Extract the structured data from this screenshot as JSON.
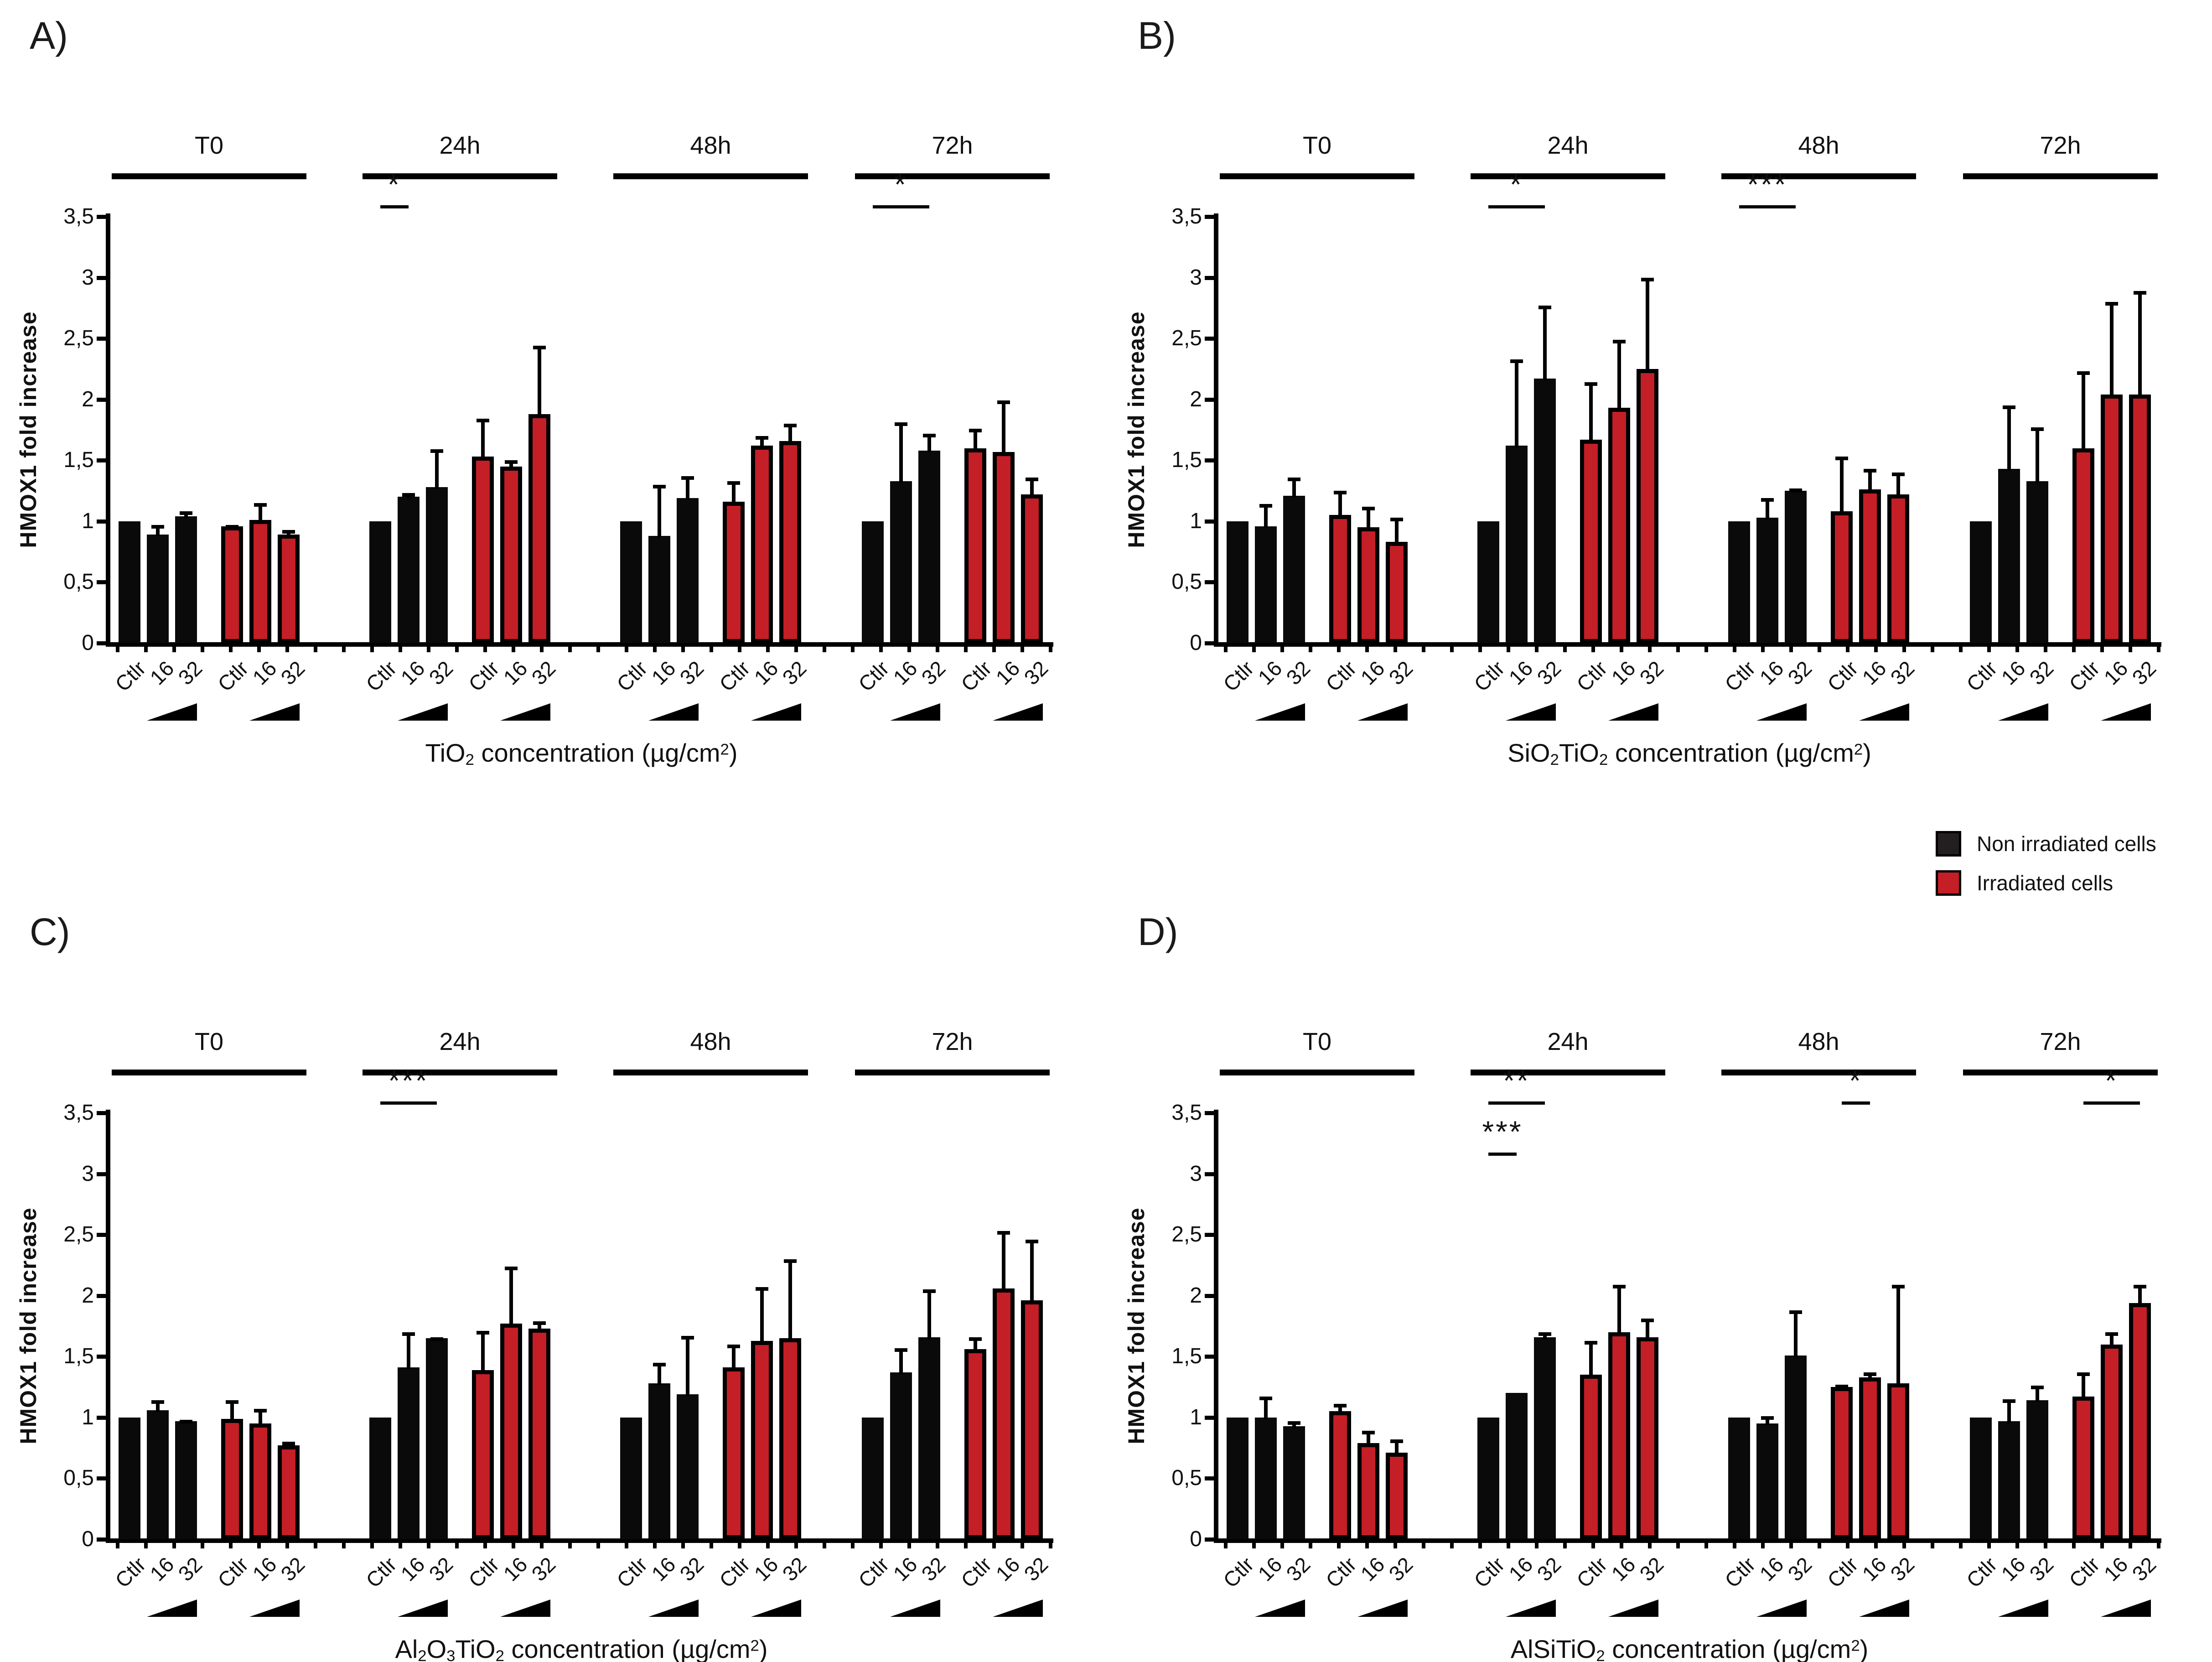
{
  "figure": {
    "background": "#ffffff",
    "series_colors": {
      "non_irradiated": "#0a0a0a",
      "irradiated": "#c41e26"
    },
    "bar_outline_color": "#000000",
    "ylabel": "HMOX1 fold increase",
    "ymax": 3.5,
    "yticks": [
      "0",
      "0,5",
      "1",
      "1,5",
      "2",
      "2,5",
      "3",
      "3,5"
    ],
    "concentration_labels": [
      "Ctlr",
      "16",
      "32"
    ],
    "legend": {
      "items": [
        {
          "key": "non_irradiated",
          "label": "Non irradiated cells",
          "color": "#231f20"
        },
        {
          "key": "irradiated",
          "label": "Irradiated cells",
          "color": "#c41e26"
        }
      ]
    }
  },
  "chart_data": [
    {
      "panel": "A",
      "letter": "A)",
      "type": "bar",
      "ylabel": "HMOX1 fold increase",
      "ylim": [
        0,
        3.5
      ],
      "categories": [
        "Ctlr",
        "16",
        "32"
      ],
      "xlabel_text": "TiO2 concentration (µg/cm2)",
      "xlabel_segments": [
        {
          "t": "TiO"
        },
        {
          "t": "2",
          "s": "sub"
        },
        {
          "t": " concentration (µg/cm"
        },
        {
          "t": "2",
          "s": "sup"
        },
        {
          "t": ")"
        }
      ],
      "groups": [
        {
          "label": "T0",
          "non_irradiated": {
            "values": [
              1.0,
              0.89,
              1.04
            ],
            "errors": [
              0,
              0.08,
              0.04
            ]
          },
          "irradiated": {
            "values": [
              0.96,
              1.01,
              0.89
            ],
            "errors": [
              0.01,
              0.14,
              0.04
            ]
          },
          "significance": []
        },
        {
          "label": "24h",
          "non_irradiated": {
            "values": [
              1.0,
              1.2,
              1.28
            ],
            "errors": [
              0,
              0.03,
              0.31
            ]
          },
          "irradiated": {
            "values": [
              1.53,
              1.45,
              1.88
            ],
            "errors": [
              0.31,
              0.05,
              0.56
            ]
          },
          "significance": [
            {
              "stars": "*",
              "series": "non_irradiated",
              "from": "Ctlr",
              "to": "16"
            }
          ]
        },
        {
          "label": "48h",
          "non_irradiated": {
            "values": [
              1.0,
              0.88,
              1.19
            ],
            "errors": [
              0,
              0.42,
              0.18
            ]
          },
          "irradiated": {
            "values": [
              1.16,
              1.62,
              1.66
            ],
            "errors": [
              0.17,
              0.08,
              0.14
            ]
          },
          "significance": []
        },
        {
          "label": "72h",
          "non_irradiated": {
            "values": [
              1.0,
              1.33,
              1.58
            ],
            "errors": [
              0,
              0.48,
              0.14
            ]
          },
          "irradiated": {
            "values": [
              1.6,
              1.57,
              1.22
            ],
            "errors": [
              0.16,
              0.42,
              0.14
            ]
          },
          "significance": [
            {
              "stars": "*",
              "series": "non_irradiated",
              "from": "Ctlr",
              "to": "32"
            }
          ]
        }
      ]
    },
    {
      "panel": "B",
      "letter": "B)",
      "type": "bar",
      "ylabel": "HMOX1 fold increase",
      "ylim": [
        0,
        3.5
      ],
      "categories": [
        "Ctlr",
        "16",
        "32"
      ],
      "xlabel_text": "SiO2TiO2 concentration (µg/cm2)",
      "xlabel_segments": [
        {
          "t": "SiO"
        },
        {
          "t": "2",
          "s": "sub"
        },
        {
          "t": "TiO"
        },
        {
          "t": "2",
          "s": "sub"
        },
        {
          "t": " concentration (µg/cm"
        },
        {
          "t": "2",
          "s": "sup"
        },
        {
          "t": ")"
        }
      ],
      "groups": [
        {
          "label": "T0",
          "non_irradiated": {
            "values": [
              1.0,
              0.96,
              1.21
            ],
            "errors": [
              0,
              0.18,
              0.15
            ]
          },
          "irradiated": {
            "values": [
              1.05,
              0.95,
              0.83
            ],
            "errors": [
              0.2,
              0.17,
              0.2
            ]
          },
          "significance": []
        },
        {
          "label": "24h",
          "non_irradiated": {
            "values": [
              1.0,
              1.62,
              2.17
            ],
            "errors": [
              0,
              0.71,
              0.6
            ]
          },
          "irradiated": {
            "values": [
              1.67,
              1.93,
              2.25
            ],
            "errors": [
              0.47,
              0.56,
              0.75
            ]
          },
          "significance": [
            {
              "stars": "*",
              "series": "non_irradiated",
              "from": "Ctlr",
              "to": "32"
            }
          ]
        },
        {
          "label": "48h",
          "non_irradiated": {
            "values": [
              1.0,
              1.03,
              1.25
            ],
            "errors": [
              0,
              0.16,
              0.02
            ]
          },
          "irradiated": {
            "values": [
              1.08,
              1.26,
              1.22
            ],
            "errors": [
              0.45,
              0.17,
              0.18
            ]
          },
          "significance": [
            {
              "stars": "***",
              "series": "non_irradiated",
              "from": "Ctlr",
              "to": "32"
            }
          ]
        },
        {
          "label": "72h",
          "non_irradiated": {
            "values": [
              1.0,
              1.43,
              1.33
            ],
            "errors": [
              0,
              0.52,
              0.44
            ]
          },
          "irradiated": {
            "values": [
              1.6,
              2.04,
              2.04
            ],
            "errors": [
              0.63,
              0.76,
              0.85
            ]
          },
          "significance": []
        }
      ]
    },
    {
      "panel": "C",
      "letter": "C)",
      "type": "bar",
      "ylabel": "HMOX1 fold increase",
      "ylim": [
        0,
        3.5
      ],
      "categories": [
        "Ctlr",
        "16",
        "32"
      ],
      "xlabel_text": "Al2O3TiO2 concentration (µg/cm2)",
      "xlabel_segments": [
        {
          "t": "Al"
        },
        {
          "t": "2",
          "s": "sub"
        },
        {
          "t": "O"
        },
        {
          "t": "3",
          "s": "sub"
        },
        {
          "t": "TiO"
        },
        {
          "t": "2",
          "s": "sub"
        },
        {
          "t": " concentration (µg/cm"
        },
        {
          "t": "2",
          "s": "sup"
        },
        {
          "t": ")"
        }
      ],
      "groups": [
        {
          "label": "T0",
          "non_irradiated": {
            "values": [
              1.0,
              1.06,
              0.97
            ],
            "errors": [
              0,
              0.08,
              0.01
            ]
          },
          "irradiated": {
            "values": [
              0.99,
              0.95,
              0.77
            ],
            "errors": [
              0.15,
              0.12,
              0.03
            ]
          },
          "significance": []
        },
        {
          "label": "24h",
          "non_irradiated": {
            "values": [
              1.0,
              1.41,
              1.65
            ],
            "errors": [
              0,
              0.29,
              0.01
            ]
          },
          "irradiated": {
            "values": [
              1.39,
              1.77,
              1.73
            ],
            "errors": [
              0.32,
              0.47,
              0.06
            ]
          },
          "significance": [
            {
              "stars": "***",
              "series": "non_irradiated",
              "from": "Ctlr",
              "to": "32"
            }
          ]
        },
        {
          "label": "48h",
          "non_irradiated": {
            "values": [
              1.0,
              1.28,
              1.19
            ],
            "errors": [
              0,
              0.17,
              0.48
            ]
          },
          "irradiated": {
            "values": [
              1.41,
              1.63,
              1.65
            ],
            "errors": [
              0.19,
              0.44,
              0.65
            ]
          },
          "significance": []
        },
        {
          "label": "72h",
          "non_irradiated": {
            "values": [
              1.0,
              1.37,
              1.66
            ],
            "errors": [
              0,
              0.2,
              0.39
            ]
          },
          "irradiated": {
            "values": [
              1.56,
              2.06,
              1.96
            ],
            "errors": [
              0.1,
              0.47,
              0.5
            ]
          },
          "significance": []
        }
      ]
    },
    {
      "panel": "D",
      "letter": "D)",
      "type": "bar",
      "ylabel": "HMOX1 fold increase",
      "ylim": [
        0,
        3.5
      ],
      "categories": [
        "Ctlr",
        "16",
        "32"
      ],
      "xlabel_text": "AlSiTiO2 concentration (µg/cm2)",
      "xlabel_segments": [
        {
          "t": "AlSiTiO"
        },
        {
          "t": "2",
          "s": "sub"
        },
        {
          "t": " concentration (µg/cm"
        },
        {
          "t": "2",
          "s": "sup"
        },
        {
          "t": ")"
        }
      ],
      "groups": [
        {
          "label": "T0",
          "non_irradiated": {
            "values": [
              1.0,
              1.0,
              0.93
            ],
            "errors": [
              0,
              0.17,
              0.04
            ]
          },
          "irradiated": {
            "values": [
              1.05,
              0.79,
              0.71
            ],
            "errors": [
              0.06,
              0.1,
              0.11
            ]
          },
          "significance": []
        },
        {
          "label": "24h",
          "non_irradiated": {
            "values": [
              1.0,
              1.2,
              1.66
            ],
            "errors": [
              0,
              0,
              0.04
            ]
          },
          "irradiated": {
            "values": [
              1.35,
              1.7,
              1.66
            ],
            "errors": [
              0.28,
              0.39,
              0.15
            ]
          },
          "significance": [
            {
              "stars": "**",
              "series": "non_irradiated",
              "from": "Ctlr",
              "to": "32"
            },
            {
              "stars": "***",
              "series": "non_irradiated",
              "from": "Ctlr",
              "to": "16"
            }
          ]
        },
        {
          "label": "48h",
          "non_irradiated": {
            "values": [
              1.0,
              0.95,
              1.51
            ],
            "errors": [
              0,
              0.06,
              0.37
            ]
          },
          "irradiated": {
            "values": [
              1.25,
              1.33,
              1.28
            ],
            "errors": [
              0.02,
              0.04,
              0.81
            ]
          },
          "significance": [
            {
              "stars": "*",
              "series": "irradiated",
              "from": "Ctlr",
              "to": "16"
            }
          ]
        },
        {
          "label": "72h",
          "non_irradiated": {
            "values": [
              1.0,
              0.97,
              1.14
            ],
            "errors": [
              0,
              0.18,
              0.12
            ]
          },
          "irradiated": {
            "values": [
              1.17,
              1.6,
              1.94
            ],
            "errors": [
              0.2,
              0.1,
              0.15
            ]
          },
          "significance": [
            {
              "stars": "*",
              "series": "irradiated",
              "from": "Ctlr",
              "to": "32"
            }
          ]
        }
      ]
    }
  ]
}
